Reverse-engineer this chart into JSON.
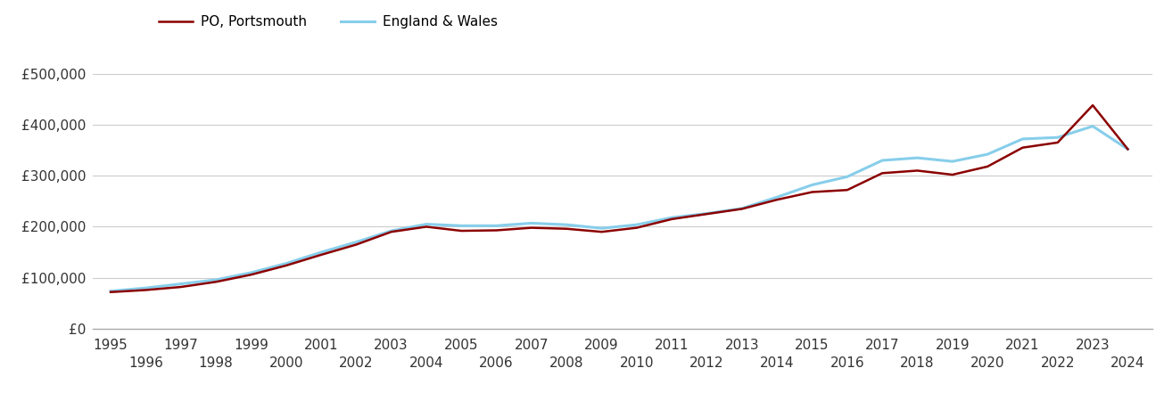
{
  "legend_labels": [
    "PO, Portsmouth",
    "England & Wales"
  ],
  "po_color": "#8B0000",
  "ew_color": "#87CEEB",
  "po_linewidth": 1.8,
  "ew_linewidth": 2.2,
  "background_color": "#ffffff",
  "grid_color": "#cccccc",
  "years": [
    1995,
    1996,
    1997,
    1998,
    1999,
    2000,
    2001,
    2002,
    2003,
    2004,
    2005,
    2006,
    2007,
    2008,
    2009,
    2010,
    2011,
    2012,
    2013,
    2014,
    2015,
    2016,
    2017,
    2018,
    2019,
    2020,
    2021,
    2022,
    2023,
    2024
  ],
  "po_values": [
    72000,
    76000,
    82000,
    92000,
    106000,
    124000,
    145000,
    165000,
    190000,
    200000,
    192000,
    193000,
    198000,
    196000,
    190000,
    198000,
    215000,
    225000,
    235000,
    253000,
    268000,
    272000,
    305000,
    310000,
    302000,
    318000,
    355000,
    365000,
    438000,
    352000
  ],
  "ew_values": [
    74000,
    80000,
    88000,
    96000,
    110000,
    128000,
    150000,
    170000,
    192000,
    205000,
    202000,
    202000,
    207000,
    204000,
    197000,
    204000,
    218000,
    226000,
    236000,
    258000,
    282000,
    298000,
    330000,
    335000,
    328000,
    342000,
    372000,
    375000,
    397000,
    352000
  ],
  "ylim": [
    0,
    550000
  ],
  "yticks": [
    0,
    100000,
    200000,
    300000,
    400000,
    500000
  ],
  "ytick_labels": [
    "£0",
    "£100,000",
    "£200,000",
    "£300,000",
    "£400,000",
    "£500,000"
  ],
  "xticks_odd": [
    1995,
    1997,
    1999,
    2001,
    2003,
    2005,
    2007,
    2009,
    2011,
    2013,
    2015,
    2017,
    2019,
    2021,
    2023
  ],
  "xticks_even": [
    1996,
    1998,
    2000,
    2002,
    2004,
    2006,
    2008,
    2010,
    2012,
    2014,
    2016,
    2018,
    2020,
    2022,
    2024
  ],
  "tick_fontsize": 11,
  "legend_fontsize": 11,
  "tick_color": "#333333",
  "spine_color": "#aaaaaa"
}
